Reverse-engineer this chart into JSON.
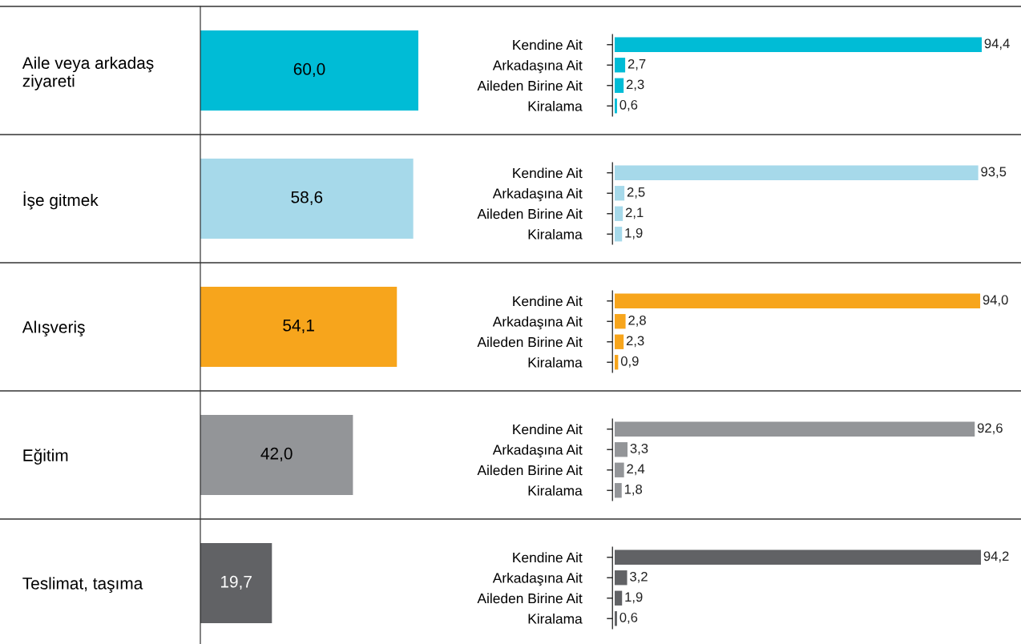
{
  "chart_data": [
    {
      "type": "bar",
      "orientation": "horizontal",
      "categories": [
        "Aile veya arkadaş\nziyareti",
        "İşe gitmek",
        "Alışveriş",
        "Eğitim",
        "Teslimat, taşıma"
      ],
      "values": [
        60.0,
        58.6,
        54.1,
        42.0,
        19.7
      ],
      "colors": [
        "#00bcd6",
        "#a6d9ea",
        "#f7a51c",
        "#939598",
        "#616265"
      ],
      "value_labels": [
        "60,0",
        "58,6",
        "54,1",
        "42,0",
        "19,7"
      ]
    },
    {
      "type": "bar",
      "orientation": "horizontal",
      "categories": [
        "Kendine Ait",
        "Arkadaşına Ait",
        "Aileden Birine Ait",
        "Kiralama"
      ],
      "values": [
        94.4,
        2.7,
        2.3,
        0.6
      ],
      "color": "#00bcd6",
      "value_labels": [
        "94,4",
        "2,7",
        "2,3",
        "0,6"
      ]
    },
    {
      "type": "bar",
      "orientation": "horizontal",
      "categories": [
        "Kendine Ait",
        "Arkadaşına Ait",
        "Aileden Birine Ait",
        "Kiralama"
      ],
      "values": [
        93.5,
        2.5,
        2.1,
        1.9
      ],
      "color": "#a6d9ea",
      "value_labels": [
        "93,5",
        "2,5",
        "2,1",
        "1,9"
      ]
    },
    {
      "type": "bar",
      "orientation": "horizontal",
      "categories": [
        "Kendine Ait",
        "Arkadaşına Ait",
        "Aileden Birine Ait",
        "Kiralama"
      ],
      "values": [
        94.0,
        2.8,
        2.3,
        0.9
      ],
      "color": "#f7a51c",
      "value_labels": [
        "94,0",
        "2,8",
        "2,3",
        "0,9"
      ]
    },
    {
      "type": "bar",
      "orientation": "horizontal",
      "categories": [
        "Kendine Ait",
        "Arkadaşına Ait",
        "Aileden Birine Ait",
        "Kiralama"
      ],
      "values": [
        92.6,
        3.3,
        2.4,
        1.8
      ],
      "color": "#939598",
      "value_labels": [
        "92,6",
        "3,3",
        "2,4",
        "1,8"
      ]
    },
    {
      "type": "bar",
      "orientation": "horizontal",
      "categories": [
        "Kendine Ait",
        "Arkadaşına Ait",
        "Aileden Birine Ait",
        "Kiralama"
      ],
      "values": [
        94.2,
        3.2,
        1.9,
        0.6
      ],
      "color": "#616265",
      "value_labels": [
        "94,2",
        "3,2",
        "1,9",
        "0,6"
      ]
    }
  ]
}
